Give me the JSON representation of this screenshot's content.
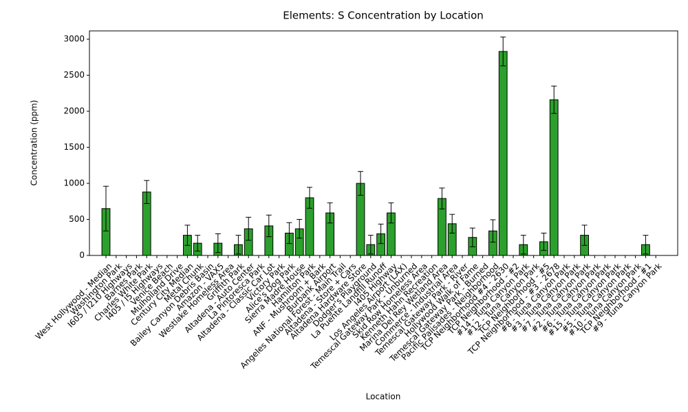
{
  "chart_data": {
    "type": "bar",
    "title": "Elements: S Concentration by Location",
    "x_label": "Location",
    "y_label": "Concentration (ppm)",
    "categories": [
      "West Hollywood - Median",
      "Washington Park",
      "I605 / I210 Highways",
      "Barnes Park",
      "Charles White Park",
      "I405 / I5 Highways",
      "Venice Beach",
      "Mulholland Drive",
      "Century City Median",
      "Metal Chunk",
      "Bailey Canyon Debris Basin",
      "Amazon - VAX5",
      "Westlake Homeless Area",
      "Griffith Park",
      "Altadena - Auto Center",
      "La Pintoresca Park",
      "Altadena - Classic Car Lot",
      "Victory Park",
      "Alice's Dog Park",
      "Sierra Madre House",
      "Hamilton Park",
      "ANF - Mushroom + Bark",
      "Burbank Airport",
      "Angeles National Forest - Main Trail",
      "Altadena - Store + Cars",
      "Altadena Hardware Store",
      "Dodger's Playground",
      "La Puente Landfill Runoff",
      "I405 Highway",
      "Los Angeles Airport (LAX)",
      "Temescal Gateway Park - Unburned",
      "Skid Row Homeless Area",
      "Kenneth Hahn Recreation",
      "Marina Del Rey Wetland Area",
      "Commerce - Industrial Area",
      "Temescal Gateway Park - River",
      "Hollywood Walk of Fame",
      "Temescal Gateway Park - Burned",
      "Pacific Palisades - Neighborhood",
      "TCP Neighborhood #4 - 2630",
      "TCP Neighborhood - #2",
      "#14 - Tuna Canyon Park",
      "#12 - Tuna Canyon Park",
      "TCP Neighborhood - #5",
      "TCP Neighborhood - #3 - 2678",
      "#8 - Tuna Canyon Park",
      "#3 - Tuna Canyon Park",
      "#7 - Tuna Canyon Park",
      "#2 - Tuna Canyon Park",
      "#6 - Tuna Canyon Park",
      "#15 - Tuna Canyon Park",
      "#5 - Tuna Canyon Park",
      "#10 - Tuna Canyon Park",
      "TCP Neighborhood - #1",
      "#9 - Tuna Canyon Park"
    ],
    "values": [
      650,
      null,
      null,
      null,
      880,
      null,
      null,
      null,
      280,
      170,
      null,
      170,
      null,
      150,
      370,
      null,
      410,
      null,
      310,
      370,
      800,
      null,
      590,
      null,
      null,
      1000,
      150,
      300,
      590,
      null,
      null,
      null,
      null,
      790,
      440,
      null,
      250,
      null,
      340,
      2830,
      null,
      150,
      null,
      190,
      2160,
      null,
      null,
      280,
      null,
      null,
      null,
      null,
      null,
      150,
      null
    ],
    "errors": [
      310,
      null,
      null,
      null,
      160,
      null,
      null,
      null,
      140,
      110,
      null,
      130,
      null,
      130,
      160,
      null,
      150,
      null,
      145,
      130,
      145,
      null,
      140,
      null,
      null,
      165,
      130,
      135,
      140,
      null,
      null,
      null,
      null,
      145,
      130,
      null,
      130,
      null,
      155,
      200,
      null,
      130,
      null,
      120,
      190,
      null,
      null,
      140,
      null,
      null,
      null,
      null,
      null,
      130,
      null
    ],
    "color": "#2ca02c",
    "ylim": [
      0,
      3115
    ],
    "yticks": [
      0,
      500,
      1000,
      1500,
      2000,
      2500,
      3000
    ]
  }
}
